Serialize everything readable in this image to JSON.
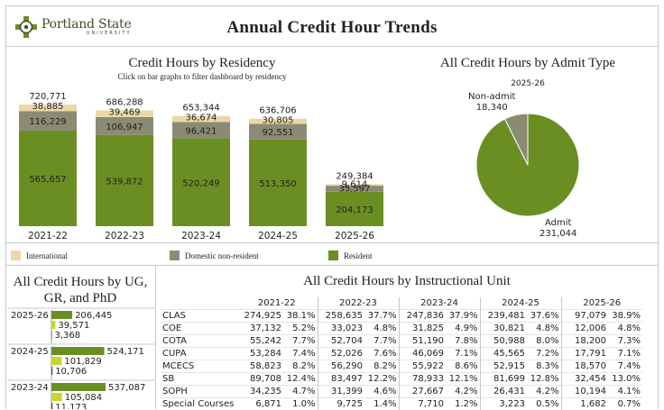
{
  "header": {
    "logo_name": "Portland State",
    "logo_sub": "UNIVERSITY",
    "title": "Annual Credit Hour Trends"
  },
  "residency": {
    "title": "Credit Hours by Residency",
    "subtitle": "Click on bar graphs to filter dashboard by residency",
    "legend": [
      "International",
      "Domestic non-resident",
      "Resident"
    ]
  },
  "admit": {
    "title": "All Credit Hours by Admit Type",
    "year": "2025-26",
    "labels": {
      "nonadmit": "Non-admit",
      "nonadmit_value": "18,340",
      "admit": "Admit",
      "admit_value": "231,044"
    }
  },
  "ugpanel": {
    "title_line1": "All Credit Hours by UG,",
    "title_line2": "GR, and PhD"
  },
  "instructional": {
    "title": "All Credit Hours by Instructional Unit",
    "years": [
      "2021-22",
      "2022-23",
      "2023-24",
      "2024-25",
      "2025-26"
    ],
    "rows": [
      {
        "unit": "CLAS",
        "cells": [
          "274,925",
          "38.1%",
          "258,635",
          "37.7%",
          "247,836",
          "37.9%",
          "239,481",
          "37.6%",
          "97,079",
          "38.9%"
        ]
      },
      {
        "unit": "COE",
        "cells": [
          "37,132",
          "5.2%",
          "33,023",
          "4.8%",
          "31,825",
          "4.9%",
          "30,821",
          "4.8%",
          "12,006",
          "4.8%"
        ]
      },
      {
        "unit": "COTA",
        "cells": [
          "55,242",
          "7.7%",
          "52,704",
          "7.7%",
          "51,190",
          "7.8%",
          "50,988",
          "8.0%",
          "18,200",
          "7.3%"
        ]
      },
      {
        "unit": "CUPA",
        "cells": [
          "53,284",
          "7.4%",
          "52,026",
          "7.6%",
          "46,069",
          "7.1%",
          "45,565",
          "7.2%",
          "17,791",
          "7.1%"
        ]
      },
      {
        "unit": "MCECS",
        "cells": [
          "58,823",
          "8.2%",
          "56,290",
          "8.2%",
          "55,922",
          "8.6%",
          "52,915",
          "8.3%",
          "18,570",
          "7.4%"
        ]
      },
      {
        "unit": "SB",
        "cells": [
          "89,708",
          "12.4%",
          "83,497",
          "12.2%",
          "78,933",
          "12.1%",
          "81,699",
          "12.8%",
          "32,454",
          "13.0%"
        ]
      },
      {
        "unit": "SOPH",
        "cells": [
          "34,235",
          "4.7%",
          "31,399",
          "4.6%",
          "27,667",
          "4.2%",
          "26,431",
          "4.2%",
          "10,194",
          "4.1%"
        ]
      },
      {
        "unit": "Special Courses",
        "cells": [
          "6,871",
          "1.0%",
          "9,725",
          "1.4%",
          "7,710",
          "1.2%",
          "3,223",
          "0.5%",
          "1,682",
          "0.7%"
        ]
      }
    ]
  },
  "colors": {
    "resident": "#6b8e23",
    "domestic": "#8b8b74",
    "international": "#ead9a6",
    "ug": "#6b8e23",
    "gr": "#c8d62e",
    "phd": "#3d5a1e"
  },
  "chart_data": [
    {
      "type": "bar",
      "title": "Credit Hours by Residency",
      "stacked": true,
      "categories": [
        "2021-22",
        "2022-23",
        "2023-24",
        "2024-25",
        "2025-26"
      ],
      "series": [
        {
          "name": "Resident",
          "values": [
            565657,
            539872,
            520249,
            513350,
            204173
          ],
          "labels": [
            "565,657",
            "539,872",
            "520,249",
            "513,350",
            "204,173"
          ]
        },
        {
          "name": "Domestic non-resident",
          "values": [
            116229,
            106947,
            96421,
            92551,
            35597
          ],
          "labels": [
            "116,229",
            "106,947",
            "96,421",
            "92,551",
            "35,597"
          ]
        },
        {
          "name": "International",
          "values": [
            38885,
            39469,
            36674,
            30805,
            9614
          ],
          "labels": [
            "38,885",
            "39,469",
            "36,674",
            "30,805",
            "9,614"
          ]
        }
      ],
      "totals": [
        "720,771",
        "686,288",
        "653,344",
        "636,706",
        "249,384"
      ],
      "totals_values": [
        720771,
        686288,
        653344,
        636706,
        249384
      ],
      "legend_position": "bottom"
    },
    {
      "type": "pie",
      "title": "All Credit Hours by Admit Type",
      "subtitle": "2025-26",
      "slices": [
        {
          "name": "Admit",
          "value": 231044
        },
        {
          "name": "Non-admit",
          "value": 18340
        }
      ]
    },
    {
      "type": "bar",
      "title": "All Credit Hours by UG, GR, and PhD",
      "orientation": "horizontal",
      "groups": [
        {
          "year": "2025-26",
          "values": [
            206445,
            39571,
            3368
          ],
          "labels": [
            "206,445",
            "39,571",
            "3,368"
          ]
        },
        {
          "year": "2024-25",
          "values": [
            524171,
            101829,
            10706
          ],
          "labels": [
            "524,171",
            "101,829",
            "10,706"
          ]
        },
        {
          "year": "2023-24",
          "values": [
            537087,
            105084,
            11173
          ],
          "labels": [
            "537,087",
            "105,084",
            "11,173"
          ]
        }
      ]
    }
  ]
}
